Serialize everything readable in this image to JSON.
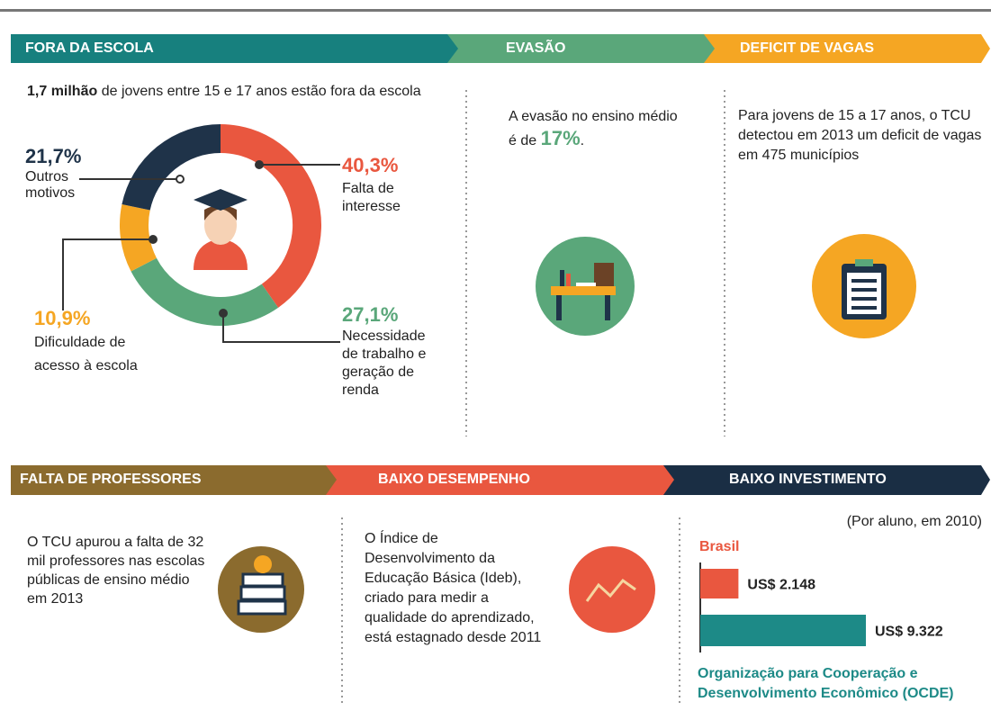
{
  "sections": {
    "fora_da_escola": {
      "title": "FORA DA ESCOLA",
      "intro_bold": "1,7 milhão",
      "intro_rest": " de jovens entre 15 e 17 anos estão fora da escola"
    },
    "evasao": {
      "title": "EVASÃO",
      "text_before": "A evasão no ensino médio é de ",
      "highlight": "17%",
      "text_after": "."
    },
    "deficit": {
      "title": "DEFICIT DE VAGAS",
      "text": "Para jovens de 15 a 17 anos, o TCU detectou em 2013 um deficit de vagas em 475 municípios"
    },
    "professores": {
      "title": "FALTA DE PROFESSORES",
      "text": "O TCU apurou a falta de 32 mil professores nas escolas públicas de ensino médio em 2013"
    },
    "desempenho": {
      "title": "BAIXO DESEMPENHO",
      "text": "O Índice de Desenvolvimento da Educação Básica (Ideb), criado para medir a qualidade do aprendizado, está estagnado desde 2011"
    },
    "investimento": {
      "title": "BAIXO INVESTIMENTO"
    }
  },
  "chart_data": [
    {
      "type": "donut",
      "categories": [
        "Falta de interesse",
        "Necessidade de trabalho e geração de renda",
        "Dificuldade de acesso à escola",
        "Outros motivos"
      ],
      "values": [
        40.3,
        27.1,
        10.9,
        21.7
      ],
      "value_labels": [
        "40,3%",
        "27,1%",
        "10,9%",
        "21,7%"
      ],
      "colors": [
        "#e9573f",
        "#5aa77a",
        "#f5a623",
        "#1f3349"
      ]
    },
    {
      "type": "hbar",
      "subtitle": "(Por aluno, em 2010)",
      "categories": [
        "Brasil",
        "Organização para Cooperação e Desenvolvimento Econômico (OCDE)"
      ],
      "values": [
        2148,
        9322
      ],
      "value_labels": [
        "US$ 2.148",
        "US$ 9.322"
      ],
      "colors": [
        "#e9573f",
        "#1d8a87"
      ]
    }
  ]
}
